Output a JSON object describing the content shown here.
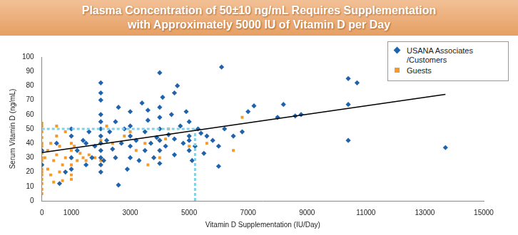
{
  "chart_data": {
    "type": "scatter",
    "title": [
      "Plasma Concentration of 50±10 ng/mL Requires Supplementation",
      "with Approximately 5000 IU of Vitamin D per Day"
    ],
    "x_label": "Vitamin D Supplementation (IU/Day)",
    "y_label": "Serum Vitamin D (ng/mL)",
    "xlim": [
      0,
      15000
    ],
    "xticks": [
      0,
      1000,
      3000,
      5000,
      7000,
      9000,
      11000,
      13000,
      15000
    ],
    "ylim": [
      0,
      100
    ],
    "yticks": [
      0,
      10,
      20,
      30,
      40,
      50,
      60,
      70,
      80,
      90,
      100
    ],
    "grid": false,
    "legend": "top-right",
    "series": [
      {
        "name": "USANA Associates /Customers",
        "color": "#1f63ad",
        "marker": "diamond",
        "values": [
          [
            0,
            25
          ],
          [
            0,
            35
          ],
          [
            500,
            40
          ],
          [
            600,
            12
          ],
          [
            800,
            20
          ],
          [
            1000,
            22
          ],
          [
            1000,
            30
          ],
          [
            1000,
            45
          ],
          [
            1000,
            50
          ],
          [
            1200,
            35
          ],
          [
            1500,
            40
          ],
          [
            1500,
            25
          ],
          [
            1700,
            30
          ],
          [
            1800,
            38
          ],
          [
            2000,
            20
          ],
          [
            2000,
            25
          ],
          [
            2000,
            30
          ],
          [
            2000,
            35
          ],
          [
            2000,
            40
          ],
          [
            2000,
            45
          ],
          [
            2000,
            50
          ],
          [
            2000,
            55
          ],
          [
            2000,
            60
          ],
          [
            2000,
            70
          ],
          [
            2000,
            82
          ],
          [
            2000,
            75
          ],
          [
            2100,
            28
          ],
          [
            2200,
            42
          ],
          [
            2300,
            48
          ],
          [
            2400,
            36
          ],
          [
            2500,
            30
          ],
          [
            2500,
            55
          ],
          [
            2600,
            11
          ],
          [
            2600,
            65
          ],
          [
            2700,
            40
          ],
          [
            2800,
            50
          ],
          [
            2900,
            22
          ],
          [
            3000,
            30
          ],
          [
            3000,
            38
          ],
          [
            3000,
            45
          ],
          [
            3000,
            52
          ],
          [
            3000,
            62
          ],
          [
            3200,
            42
          ],
          [
            3300,
            28
          ],
          [
            3400,
            68
          ],
          [
            3500,
            35
          ],
          [
            3500,
            48
          ],
          [
            3600,
            56
          ],
          [
            3700,
            40
          ],
          [
            3800,
            30
          ],
          [
            3900,
            44
          ],
          [
            4000,
            26
          ],
          [
            4000,
            35
          ],
          [
            4000,
            42
          ],
          [
            4000,
            50
          ],
          [
            4000,
            58
          ],
          [
            4000,
            65
          ],
          [
            4000,
            89
          ],
          [
            4100,
            72
          ],
          [
            4200,
            38
          ],
          [
            4300,
            46
          ],
          [
            4400,
            60
          ],
          [
            4500,
            32
          ],
          [
            4500,
            43
          ],
          [
            4600,
            80
          ],
          [
            4700,
            52
          ],
          [
            4800,
            40
          ],
          [
            4900,
            62
          ],
          [
            5000,
            35
          ],
          [
            5000,
            45
          ],
          [
            5000,
            55
          ],
          [
            5000,
            42
          ],
          [
            5100,
            28
          ],
          [
            5200,
            38
          ],
          [
            5300,
            50
          ],
          [
            5400,
            47
          ],
          [
            5500,
            33
          ],
          [
            5600,
            45
          ],
          [
            5800,
            42
          ],
          [
            6000,
            24
          ],
          [
            6000,
            38
          ],
          [
            6100,
            93
          ],
          [
            6200,
            50
          ],
          [
            6500,
            45
          ],
          [
            6800,
            48
          ],
          [
            7000,
            62
          ],
          [
            7200,
            66
          ],
          [
            8000,
            58
          ],
          [
            8200,
            67
          ],
          [
            8600,
            59
          ],
          [
            8800,
            60
          ],
          [
            10400,
            42
          ],
          [
            10400,
            67
          ],
          [
            10400,
            85
          ],
          [
            10700,
            82
          ],
          [
            13700,
            37
          ],
          [
            4500,
            75
          ],
          [
            3600,
            63
          ],
          [
            1600,
            48
          ],
          [
            1400,
            42
          ]
        ]
      },
      {
        "name": "Guests",
        "color": "#f39a2b",
        "marker": "square",
        "values": [
          [
            0,
            5
          ],
          [
            0,
            8
          ],
          [
            0,
            12
          ],
          [
            0,
            15
          ],
          [
            0,
            18
          ],
          [
            0,
            20
          ],
          [
            0,
            22
          ],
          [
            0,
            25
          ],
          [
            0,
            28
          ],
          [
            0,
            30
          ],
          [
            0,
            33
          ],
          [
            0,
            35
          ],
          [
            0,
            38
          ],
          [
            0,
            40
          ],
          [
            0,
            44
          ],
          [
            0,
            48
          ],
          [
            0,
            52
          ],
          [
            0,
            54
          ],
          [
            100,
            30
          ],
          [
            200,
            22
          ],
          [
            200,
            35
          ],
          [
            300,
            40
          ],
          [
            400,
            28
          ],
          [
            400,
            13
          ],
          [
            500,
            32
          ],
          [
            500,
            45
          ],
          [
            600,
            38
          ],
          [
            600,
            20
          ],
          [
            700,
            25
          ],
          [
            800,
            30
          ],
          [
            800,
            48
          ],
          [
            1000,
            25
          ],
          [
            1000,
            35
          ],
          [
            1000,
            40
          ],
          [
            1000,
            18
          ],
          [
            1000,
            30
          ],
          [
            1000,
            15
          ],
          [
            1100,
            38
          ],
          [
            1200,
            28
          ],
          [
            1300,
            33
          ],
          [
            1400,
            30
          ],
          [
            1500,
            28
          ],
          [
            1600,
            32
          ],
          [
            1800,
            30
          ],
          [
            2000,
            42
          ],
          [
            2000,
            28
          ],
          [
            2200,
            52
          ],
          [
            2400,
            40
          ],
          [
            2800,
            45
          ],
          [
            3000,
            48
          ],
          [
            3200,
            35
          ],
          [
            3500,
            40
          ],
          [
            3600,
            25
          ],
          [
            4000,
            30
          ],
          [
            4200,
            43
          ],
          [
            4300,
            50
          ],
          [
            5000,
            38
          ],
          [
            5600,
            40
          ],
          [
            6500,
            35
          ],
          [
            6800,
            58
          ],
          [
            500,
            52
          ],
          [
            300,
            18
          ],
          [
            700,
            14
          ]
        ]
      },
      {
        "type": "line",
        "color": "#000000",
        "line_style": "solid",
        "values": [
          [
            0,
            33.5
          ],
          [
            13700,
            74
          ]
        ]
      },
      {
        "type": "line",
        "color": "#7fd0e8",
        "line_style": "dashed",
        "values": [
          [
            0,
            50
          ],
          [
            5200,
            50
          ]
        ]
      },
      {
        "type": "line",
        "color": "#7fd0e8",
        "line_style": "dashed",
        "values": [
          [
            5200,
            0
          ],
          [
            5200,
            50
          ]
        ]
      }
    ]
  }
}
